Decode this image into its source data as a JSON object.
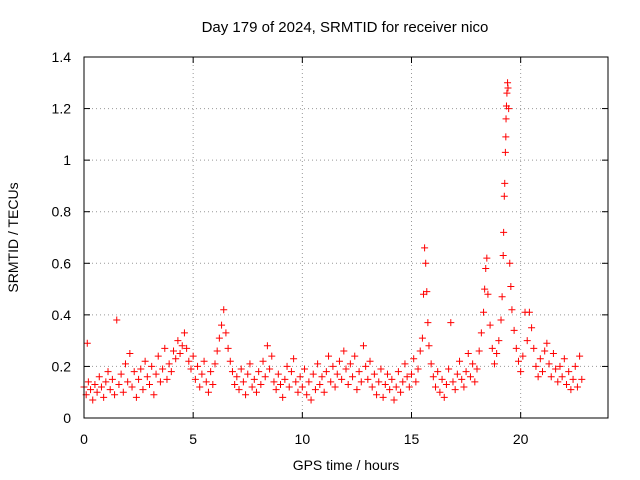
{
  "chart_data": {
    "type": "scatter",
    "title": "Day 179 of 2024, SRMTID for receiver nico",
    "xlabel": "GPS time / hours",
    "ylabel": "SRMTID / TECUs",
    "xlim": [
      0,
      24
    ],
    "ylim": [
      0,
      1.4
    ],
    "xticks": [
      0,
      5,
      10,
      15,
      20
    ],
    "xtick_labels": [
      "0",
      "5",
      "10",
      "15",
      "20"
    ],
    "yticks": [
      0,
      0.2,
      0.4,
      0.6,
      0.8,
      1,
      1.2,
      1.4
    ],
    "ytick_labels": [
      "0",
      "0.2",
      "0.4",
      "0.6",
      "0.8",
      "1",
      "1.2",
      "1.4"
    ],
    "grid": true,
    "marker": "+",
    "series": [
      {
        "name": "SRMTID",
        "color": "#ff0000",
        "points": [
          [
            0.0,
            0.12
          ],
          [
            0.1,
            0.09
          ],
          [
            0.15,
            0.29
          ],
          [
            0.2,
            0.14
          ],
          [
            0.3,
            0.11
          ],
          [
            0.4,
            0.07
          ],
          [
            0.5,
            0.13
          ],
          [
            0.6,
            0.1
          ],
          [
            0.7,
            0.16
          ],
          [
            0.8,
            0.12
          ],
          [
            0.9,
            0.08
          ],
          [
            1.0,
            0.14
          ],
          [
            1.1,
            0.18
          ],
          [
            1.2,
            0.11
          ],
          [
            1.3,
            0.15
          ],
          [
            1.4,
            0.09
          ],
          [
            1.5,
            0.38
          ],
          [
            1.6,
            0.13
          ],
          [
            1.7,
            0.17
          ],
          [
            1.8,
            0.1
          ],
          [
            1.9,
            0.21
          ],
          [
            2.0,
            0.14
          ],
          [
            2.1,
            0.25
          ],
          [
            2.2,
            0.12
          ],
          [
            2.3,
            0.18
          ],
          [
            2.4,
            0.08
          ],
          [
            2.5,
            0.15
          ],
          [
            2.6,
            0.19
          ],
          [
            2.7,
            0.11
          ],
          [
            2.8,
            0.22
          ],
          [
            2.9,
            0.16
          ],
          [
            3.0,
            0.13
          ],
          [
            3.1,
            0.2
          ],
          [
            3.2,
            0.09
          ],
          [
            3.3,
            0.17
          ],
          [
            3.4,
            0.24
          ],
          [
            3.5,
            0.14
          ],
          [
            3.6,
            0.19
          ],
          [
            3.7,
            0.27
          ],
          [
            3.8,
            0.15
          ],
          [
            3.9,
            0.21
          ],
          [
            4.0,
            0.18
          ],
          [
            4.1,
            0.26
          ],
          [
            4.2,
            0.23
          ],
          [
            4.3,
            0.3
          ],
          [
            4.4,
            0.25
          ],
          [
            4.5,
            0.28
          ],
          [
            4.6,
            0.33
          ],
          [
            4.7,
            0.27
          ],
          [
            4.8,
            0.22
          ],
          [
            4.9,
            0.19
          ],
          [
            5.0,
            0.24
          ],
          [
            5.1,
            0.15
          ],
          [
            5.2,
            0.2
          ],
          [
            5.3,
            0.12
          ],
          [
            5.4,
            0.17
          ],
          [
            5.5,
            0.22
          ],
          [
            5.6,
            0.14
          ],
          [
            5.7,
            0.1
          ],
          [
            5.8,
            0.18
          ],
          [
            5.9,
            0.13
          ],
          [
            6.0,
            0.21
          ],
          [
            6.1,
            0.26
          ],
          [
            6.2,
            0.31
          ],
          [
            6.3,
            0.36
          ],
          [
            6.4,
            0.42
          ],
          [
            6.5,
            0.33
          ],
          [
            6.6,
            0.27
          ],
          [
            6.7,
            0.22
          ],
          [
            6.8,
            0.18
          ],
          [
            6.9,
            0.13
          ],
          [
            7.0,
            0.16
          ],
          [
            7.1,
            0.11
          ],
          [
            7.2,
            0.19
          ],
          [
            7.3,
            0.14
          ],
          [
            7.4,
            0.09
          ],
          [
            7.5,
            0.17
          ],
          [
            7.6,
            0.21
          ],
          [
            7.7,
            0.12
          ],
          [
            7.8,
            0.15
          ],
          [
            7.9,
            0.1
          ],
          [
            8.0,
            0.18
          ],
          [
            8.1,
            0.13
          ],
          [
            8.2,
            0.22
          ],
          [
            8.3,
            0.16
          ],
          [
            8.4,
            0.28
          ],
          [
            8.5,
            0.19
          ],
          [
            8.6,
            0.24
          ],
          [
            8.7,
            0.14
          ],
          [
            8.8,
            0.11
          ],
          [
            8.9,
            0.17
          ],
          [
            9.0,
            0.13
          ],
          [
            9.1,
            0.08
          ],
          [
            9.2,
            0.15
          ],
          [
            9.3,
            0.2
          ],
          [
            9.4,
            0.12
          ],
          [
            9.5,
            0.18
          ],
          [
            9.6,
            0.23
          ],
          [
            9.7,
            0.14
          ],
          [
            9.8,
            0.1
          ],
          [
            9.9,
            0.16
          ],
          [
            10.0,
            0.12
          ],
          [
            10.1,
            0.19
          ],
          [
            10.2,
            0.09
          ],
          [
            10.3,
            0.14
          ],
          [
            10.4,
            0.07
          ],
          [
            10.5,
            0.17
          ],
          [
            10.6,
            0.11
          ],
          [
            10.7,
            0.21
          ],
          [
            10.8,
            0.13
          ],
          [
            10.9,
            0.16
          ],
          [
            11.0,
            0.1
          ],
          [
            11.1,
            0.18
          ],
          [
            11.2,
            0.24
          ],
          [
            11.3,
            0.14
          ],
          [
            11.4,
            0.2
          ],
          [
            11.5,
            0.12
          ],
          [
            11.6,
            0.17
          ],
          [
            11.7,
            0.22
          ],
          [
            11.8,
            0.15
          ],
          [
            11.9,
            0.26
          ],
          [
            12.0,
            0.19
          ],
          [
            12.1,
            0.13
          ],
          [
            12.2,
            0.21
          ],
          [
            12.3,
            0.16
          ],
          [
            12.4,
            0.24
          ],
          [
            12.5,
            0.11
          ],
          [
            12.6,
            0.18
          ],
          [
            12.7,
            0.14
          ],
          [
            12.8,
            0.28
          ],
          [
            12.9,
            0.2
          ],
          [
            13.0,
            0.15
          ],
          [
            13.1,
            0.22
          ],
          [
            13.2,
            0.12
          ],
          [
            13.3,
            0.17
          ],
          [
            13.4,
            0.09
          ],
          [
            13.5,
            0.14
          ],
          [
            13.6,
            0.19
          ],
          [
            13.7,
            0.08
          ],
          [
            13.8,
            0.13
          ],
          [
            13.9,
            0.17
          ],
          [
            14.0,
            0.11
          ],
          [
            14.1,
            0.15
          ],
          [
            14.2,
            0.07
          ],
          [
            14.3,
            0.12
          ],
          [
            14.4,
            0.18
          ],
          [
            14.5,
            0.1
          ],
          [
            14.6,
            0.14
          ],
          [
            14.7,
            0.21
          ],
          [
            14.8,
            0.16
          ],
          [
            14.9,
            0.12
          ],
          [
            15.0,
            0.17
          ],
          [
            15.1,
            0.23
          ],
          [
            15.2,
            0.14
          ],
          [
            15.3,
            0.19
          ],
          [
            15.4,
            0.26
          ],
          [
            15.5,
            0.31
          ],
          [
            15.55,
            0.48
          ],
          [
            15.6,
            0.66
          ],
          [
            15.65,
            0.6
          ],
          [
            15.7,
            0.49
          ],
          [
            15.75,
            0.37
          ],
          [
            15.8,
            0.28
          ],
          [
            15.9,
            0.21
          ],
          [
            16.0,
            0.16
          ],
          [
            16.1,
            0.12
          ],
          [
            16.2,
            0.18
          ],
          [
            16.3,
            0.1
          ],
          [
            16.4,
            0.15
          ],
          [
            16.5,
            0.08
          ],
          [
            16.6,
            0.13
          ],
          [
            16.7,
            0.19
          ],
          [
            16.8,
            0.37
          ],
          [
            16.9,
            0.14
          ],
          [
            17.0,
            0.11
          ],
          [
            17.1,
            0.17
          ],
          [
            17.2,
            0.22
          ],
          [
            17.3,
            0.15
          ],
          [
            17.4,
            0.12
          ],
          [
            17.5,
            0.18
          ],
          [
            17.6,
            0.25
          ],
          [
            17.7,
            0.16
          ],
          [
            17.8,
            0.21
          ],
          [
            17.9,
            0.14
          ],
          [
            18.0,
            0.19
          ],
          [
            18.1,
            0.26
          ],
          [
            18.2,
            0.33
          ],
          [
            18.3,
            0.41
          ],
          [
            18.35,
            0.5
          ],
          [
            18.4,
            0.58
          ],
          [
            18.45,
            0.62
          ],
          [
            18.5,
            0.48
          ],
          [
            18.6,
            0.36
          ],
          [
            18.7,
            0.27
          ],
          [
            18.8,
            0.21
          ],
          [
            18.9,
            0.25
          ],
          [
            19.0,
            0.3
          ],
          [
            19.1,
            0.38
          ],
          [
            19.15,
            0.47
          ],
          [
            19.2,
            0.63
          ],
          [
            19.22,
            0.72
          ],
          [
            19.25,
            0.86
          ],
          [
            19.27,
            0.91
          ],
          [
            19.3,
            1.03
          ],
          [
            19.32,
            1.09
          ],
          [
            19.33,
            1.16
          ],
          [
            19.35,
            1.21
          ],
          [
            19.37,
            1.26
          ],
          [
            19.4,
            1.3
          ],
          [
            19.42,
            1.28
          ],
          [
            19.45,
            1.2
          ],
          [
            19.5,
            0.6
          ],
          [
            19.55,
            0.51
          ],
          [
            19.6,
            0.42
          ],
          [
            19.7,
            0.34
          ],
          [
            19.8,
            0.27
          ],
          [
            19.9,
            0.22
          ],
          [
            20.0,
            0.18
          ],
          [
            20.1,
            0.24
          ],
          [
            20.2,
            0.41
          ],
          [
            20.3,
            0.3
          ],
          [
            20.4,
            0.41
          ],
          [
            20.5,
            0.35
          ],
          [
            20.6,
            0.27
          ],
          [
            20.7,
            0.2
          ],
          [
            20.8,
            0.16
          ],
          [
            20.9,
            0.23
          ],
          [
            21.0,
            0.18
          ],
          [
            21.1,
            0.26
          ],
          [
            21.2,
            0.29
          ],
          [
            21.3,
            0.21
          ],
          [
            21.4,
            0.16
          ],
          [
            21.5,
            0.25
          ],
          [
            21.6,
            0.19
          ],
          [
            21.7,
            0.14
          ],
          [
            21.8,
            0.2
          ],
          [
            21.9,
            0.16
          ],
          [
            22.0,
            0.23
          ],
          [
            22.1,
            0.13
          ],
          [
            22.2,
            0.18
          ],
          [
            22.3,
            0.11
          ],
          [
            22.4,
            0.15
          ],
          [
            22.5,
            0.2
          ],
          [
            22.6,
            0.12
          ],
          [
            22.7,
            0.24
          ],
          [
            22.8,
            0.15
          ]
        ]
      }
    ]
  }
}
